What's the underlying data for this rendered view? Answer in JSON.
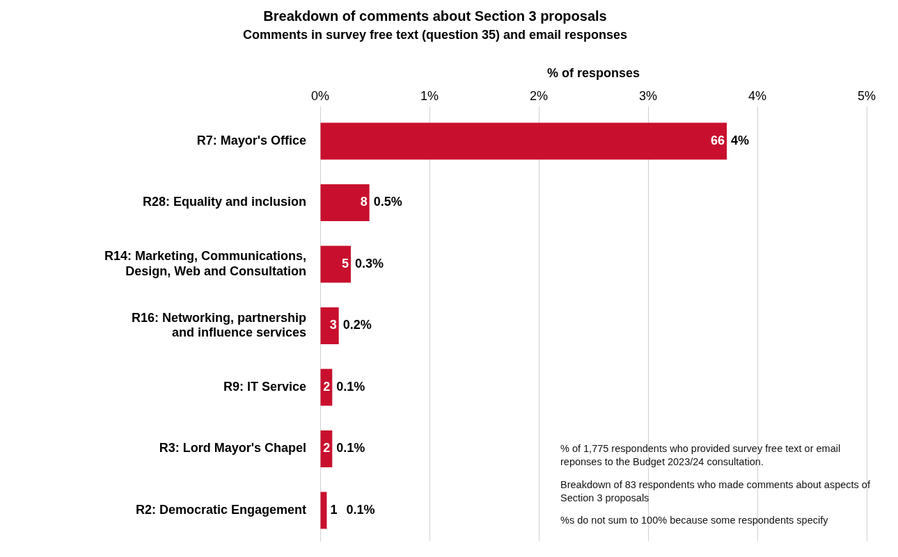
{
  "chart_data": {
    "type": "bar",
    "orientation": "horizontal",
    "title": "Breakdown of comments about Section 3 proposals",
    "subtitle": "Comments in survey free text (question 35) and email responses",
    "xlabel": "% of responses",
    "categories": [
      "R7: Mayor's Office",
      "R28: Equality and inclusion",
      "R14: Marketing, Communications,\nDesign, Web and Consultation",
      "R16: Networking, partnership\nand influence services",
      "R9: IT Service",
      "R3: Lord Mayor's Chapel",
      "R2: Democratic Engagement"
    ],
    "values": [
      3.72,
      0.45,
      0.28,
      0.17,
      0.11,
      0.11,
      0.06
    ],
    "value_labels": [
      "4%",
      "0.5%",
      "0.3%",
      "0.2%",
      "0.1%",
      "0.1%",
      "0.1%"
    ],
    "color": "#c8102e",
    "xlim": [
      0,
      5
    ],
    "xticks": [
      {
        "value": 0,
        "label": "0%"
      },
      {
        "value": 1,
        "label": "1%"
      },
      {
        "value": 2,
        "label": "2%"
      },
      {
        "value": 3,
        "label": "3%"
      },
      {
        "value": 4,
        "label": "4%"
      },
      {
        "value": 5,
        "label": "5%"
      }
    ],
    "grid": "x",
    "legend": false,
    "annotations": [
      {
        "text": "66",
        "x": 3.72,
        "y": "R7: Mayor's Office"
      },
      {
        "text": "8",
        "x": 0.45,
        "y": "R28: Equality and inclusion"
      },
      {
        "text": "5",
        "x": 0.28,
        "y": "R14: Marketing, Communications,\nDesign, Web and Consultation"
      },
      {
        "text": "3",
        "x": 0.17,
        "y": "R16: Networking, partnership\nand influence services"
      },
      {
        "text": "2",
        "x": 0.11,
        "y": "R9: IT Service"
      },
      {
        "text": "2",
        "x": 0.11,
        "y": "R3: Lord Mayor's Chapel"
      },
      {
        "text": "1",
        "x": 0.06,
        "y": "R2: Democratic Engagement"
      },
      "% of 1,775 respondents who provided survey free text or email reponses to the Budget 2023/24 consultation.",
      "Breakdown of 83 respondents who made comments about aspects of Section 3 proposals",
      "%s do not sum to 100% because some respondents specify"
    ]
  }
}
